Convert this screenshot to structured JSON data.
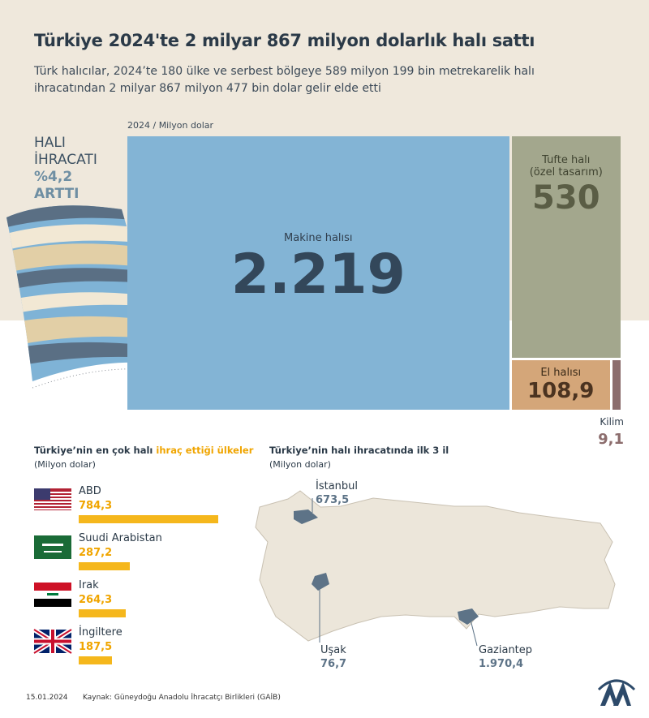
{
  "header": {
    "title": "Türkiye 2024'te 2 milyar 867 milyon dolarlık halı sattı",
    "subtitle": "Türk halıcılar, 2024’te 180 ülke ve serbest bölgeye 589 milyon 199 bin metrekarelik halı ihracatından 2 milyar 867 milyon 477 bin dolar gelir elde etti"
  },
  "side_note": {
    "lines": [
      "HALI",
      "İHRACATI",
      "%4,2",
      "ARTTI"
    ]
  },
  "chart_data": [
    {
      "type": "treemap",
      "subtitle": "2024 / Milyon dolar",
      "categories": [
        "Makine halısı",
        "Tufte halı (özel tasarım)",
        "El halısı",
        "Kilim"
      ],
      "values": [
        2219,
        530,
        108.9,
        9.1
      ],
      "value_labels": [
        "2.219",
        "530",
        "108,9",
        "9,1"
      ],
      "colors": [
        "#83b4d5",
        "#a3a78d",
        "#d4a679",
        "#8c6d6d"
      ]
    },
    {
      "type": "bar",
      "title": [
        "Türkiye’nin en çok halı ",
        "ihraç ettiği ülkeler"
      ],
      "subtitle": "(Milyon dolar)",
      "categories": [
        "ABD",
        "Suudi Arabistan",
        "Irak",
        "İngiltere"
      ],
      "values": [
        784.3,
        287.2,
        264.3,
        187.5
      ],
      "value_labels": [
        "784,3",
        "287,2",
        "264,3",
        "187,5"
      ],
      "color": "#f5b71c"
    },
    {
      "type": "map",
      "title": "Türkiye’nin halı ihracatında ilk 3 il",
      "subtitle": "(Milyon dolar)",
      "categories": [
        "İstanbul",
        "Uşak",
        "Gaziantep"
      ],
      "values": [
        673.5,
        76.7,
        1970.4
      ],
      "value_labels": [
        "673,5",
        "76,7",
        "1.970,4"
      ],
      "color": "#5d7387"
    }
  ],
  "footer": {
    "date": "15.01.2024",
    "source": "Kaynak: Güneydoğu Anadolu İhracatçı Birlikleri (GAİB)"
  }
}
